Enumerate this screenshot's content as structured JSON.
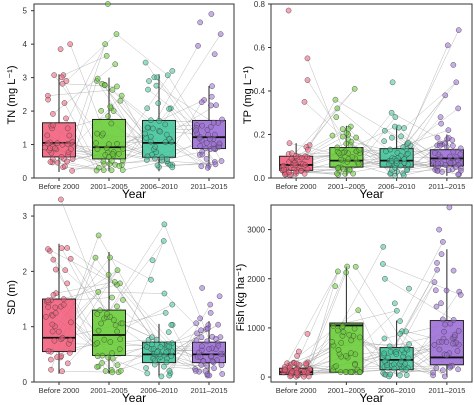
{
  "colors": {
    "Before 2000": "#F25C7A",
    "2001–2005": "#66CC33",
    "2006–2010": "#3FC59A",
    "2011–2015": "#9B6BD6",
    "connector": "#9a9a9a"
  },
  "chart_data": [
    {
      "type": "box",
      "panel": "TN",
      "categories": [
        "Before 2000",
        "2001–2005",
        "2006–2010",
        "2011–2015"
      ],
      "xlabel": "Year",
      "ylabel": "TN (mg L⁻¹)",
      "ylim": [
        0,
        5.2
      ],
      "yticks": [
        0,
        1,
        2,
        3,
        4,
        5
      ],
      "grid": false,
      "boxes": [
        {
          "q1": 0.63,
          "median": 1.05,
          "q3": 1.65,
          "whisker_low": 0.18,
          "whisker_high": 3.1
        },
        {
          "q1": 0.57,
          "median": 0.92,
          "q3": 1.75,
          "whisker_low": 0.2,
          "whisker_high": 3.0
        },
        {
          "q1": 0.62,
          "median": 1.05,
          "q3": 1.72,
          "whisker_low": 0.2,
          "whisker_high": 3.1
        },
        {
          "q1": 0.88,
          "median": 1.22,
          "q3": 1.72,
          "whisker_low": 0.25,
          "whisker_high": 2.75
        }
      ],
      "outliers": [
        [
          4.0,
          3.85
        ],
        [
          5.2,
          4.3,
          4.0,
          3.65,
          3.4
        ],
        [
          3.45,
          3.2
        ],
        [
          4.9,
          4.65,
          4.3,
          3.95,
          3.7
        ]
      ]
    },
    {
      "type": "box",
      "panel": "TP",
      "categories": [
        "Before 2000",
        "2001–2005",
        "2006–2010",
        "2011–2015"
      ],
      "xlabel": "Year",
      "ylabel": "TP (mg L⁻¹)",
      "ylim": [
        0,
        0.8
      ],
      "yticks": [
        0.0,
        0.2,
        0.4,
        0.6,
        0.8
      ],
      "grid": false,
      "boxes": [
        {
          "q1": 0.035,
          "median": 0.06,
          "q3": 0.1,
          "whisker_low": 0.01,
          "whisker_high": 0.16
        },
        {
          "q1": 0.05,
          "median": 0.08,
          "q3": 0.14,
          "whisker_low": 0.01,
          "whisker_high": 0.24
        },
        {
          "q1": 0.05,
          "median": 0.08,
          "q3": 0.135,
          "whisker_low": 0.01,
          "whisker_high": 0.24
        },
        {
          "q1": 0.055,
          "median": 0.09,
          "q3": 0.13,
          "whisker_low": 0.01,
          "whisker_high": 0.2
        }
      ],
      "outliers": [
        [
          0.77,
          0.55,
          0.45,
          0.35
        ],
        [
          0.41,
          0.36,
          0.32,
          0.28
        ],
        [
          0.44,
          0.3,
          0.28
        ],
        [
          0.68,
          0.61,
          0.52,
          0.44,
          0.38,
          0.32,
          0.28,
          0.25,
          0.22
        ]
      ]
    },
    {
      "type": "box",
      "panel": "SD",
      "categories": [
        "Before 2000",
        "2001–2005",
        "2006–2010",
        "2011–2015"
      ],
      "xlabel": "Year",
      "ylabel": "SD (m)",
      "ylim": [
        0,
        3.2
      ],
      "yticks": [
        0,
        1,
        2,
        3
      ],
      "grid": false,
      "boxes": [
        {
          "q1": 0.55,
          "median": 0.8,
          "q3": 1.5,
          "whisker_low": 0.15,
          "whisker_high": 2.5
        },
        {
          "q1": 0.48,
          "median": 0.85,
          "q3": 1.3,
          "whisker_low": 0.15,
          "whisker_high": 2.35
        },
        {
          "q1": 0.35,
          "median": 0.5,
          "q3": 0.72,
          "whisker_low": 0.1,
          "whisker_high": 1.05
        },
        {
          "q1": 0.35,
          "median": 0.5,
          "q3": 0.72,
          "whisker_low": 0.1,
          "whisker_high": 1.1
        }
      ],
      "outliers": [
        [
          3.3
        ],
        [
          2.65
        ],
        [
          2.85,
          2.55,
          2.2,
          1.85,
          1.6,
          1.4,
          1.25
        ],
        [
          1.7,
          1.55,
          1.4,
          1.25,
          1.15
        ]
      ]
    },
    {
      "type": "box",
      "panel": "Fish",
      "categories": [
        "Before 2000",
        "2001–2005",
        "2006–2010",
        "2011–2015"
      ],
      "xlabel": "Year",
      "ylabel": "Fish (kg ha⁻¹)",
      "ylim": [
        -100,
        3500
      ],
      "yticks": [
        0,
        1000,
        2000,
        3000
      ],
      "grid": false,
      "boxes": [
        {
          "q1": 50,
          "median": 100,
          "q3": 180,
          "whisker_low": 5,
          "whisker_high": 300
        },
        {
          "q1": 100,
          "median": 1050,
          "q3": 1100,
          "whisker_low": 100,
          "whisker_high": 2250
        },
        {
          "q1": 150,
          "median": 350,
          "q3": 600,
          "whisker_low": 10,
          "whisker_high": 1150
        },
        {
          "q1": 250,
          "median": 400,
          "q3": 1150,
          "whisker_low": 10,
          "whisker_high": 2600
        }
      ],
      "outliers": [
        [
          880,
          520,
          430
        ],
        [],
        [
          2650,
          2300,
          2000,
          1800,
          1500,
          1350
        ],
        [
          3450,
          3000,
          2750
        ]
      ]
    }
  ]
}
